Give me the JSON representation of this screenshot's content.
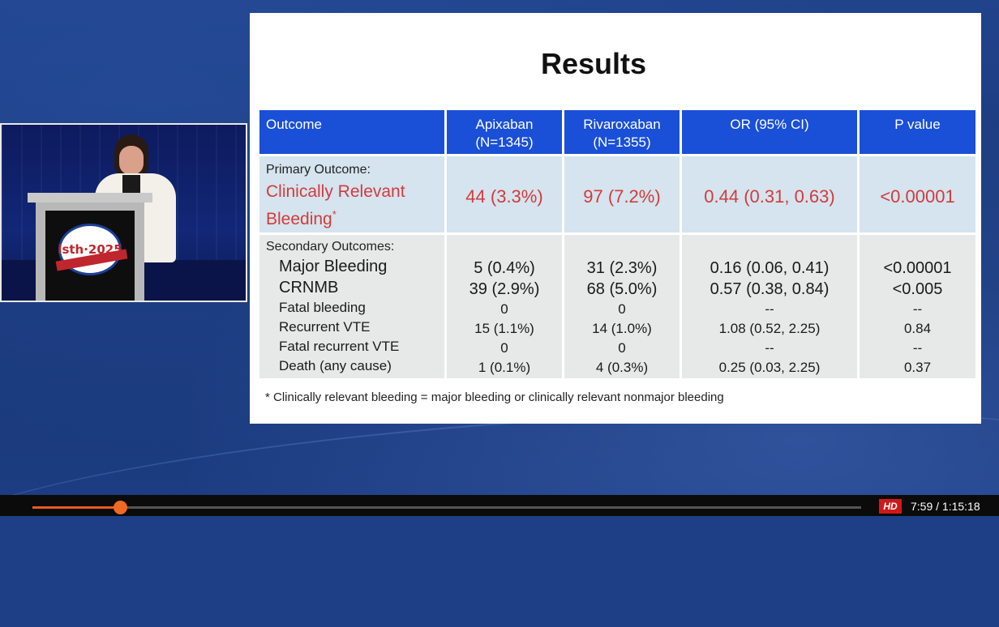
{
  "slide": {
    "title": "Results",
    "table": {
      "headers": [
        {
          "line1": "Outcome",
          "line2": ""
        },
        {
          "line1": "Apixaban",
          "line2": "(N=1345)"
        },
        {
          "line1": "Rivaroxaban",
          "line2": "(N=1355)"
        },
        {
          "line1": "OR (95% CI)",
          "line2": ""
        },
        {
          "line1": "P value",
          "line2": ""
        }
      ],
      "primary": {
        "label": "Primary Outcome:",
        "name": "Clinically Relevant",
        "name2": "Bleeding",
        "marker": "*",
        "apixaban": "44 (3.3%)",
        "rivaroxaban": "97 (7.2%)",
        "or": "0.44 (0.31, 0.63)",
        "p": "<0.00001"
      },
      "secondary_label": "Secondary Outcomes:",
      "secondary": [
        {
          "name": "Major Bleeding",
          "apixaban": "5 (0.4%)",
          "rivaroxaban": "31 (2.3%)",
          "or": "0.16 (0.06, 0.41)",
          "p": "<0.00001"
        },
        {
          "name": "CRNMB",
          "apixaban": "39 (2.9%)",
          "rivaroxaban": "68 (5.0%)",
          "or": "0.57 (0.38, 0.84)",
          "p": "<0.005"
        },
        {
          "name": "Fatal bleeding",
          "apixaban": "0",
          "rivaroxaban": "0",
          "or": "--",
          "p": "--"
        },
        {
          "name": "Recurrent VTE",
          "apixaban": "15 (1.1%)",
          "rivaroxaban": "14 (1.0%)",
          "or": "1.08 (0.52, 2.25)",
          "p": "0.84"
        },
        {
          "name": "Fatal recurrent VTE",
          "apixaban": "0",
          "rivaroxaban": "0",
          "or": "--",
          "p": "--"
        },
        {
          "name": "Death (any cause)",
          "apixaban": "1 (0.1%)",
          "rivaroxaban": "4 (0.3%)",
          "or": "0.25 (0.03, 2.25)",
          "p": "0.37"
        }
      ]
    },
    "footnote": "* Clinically relevant bleeding = major bleeding or clinically relevant nonmajor bleeding"
  },
  "speaker": {
    "logo_text": "isth·2025"
  },
  "player": {
    "progress": 0.106,
    "hd_label": "HD",
    "time": "7:59 / 1:15:18"
  },
  "colors": {
    "table_header": "#1a4fd8",
    "primary_row": "#d5e4ee",
    "secondary_row": "#e7e9e9",
    "highlight_red": "#d23b3c",
    "progress": "#e85a1e"
  }
}
